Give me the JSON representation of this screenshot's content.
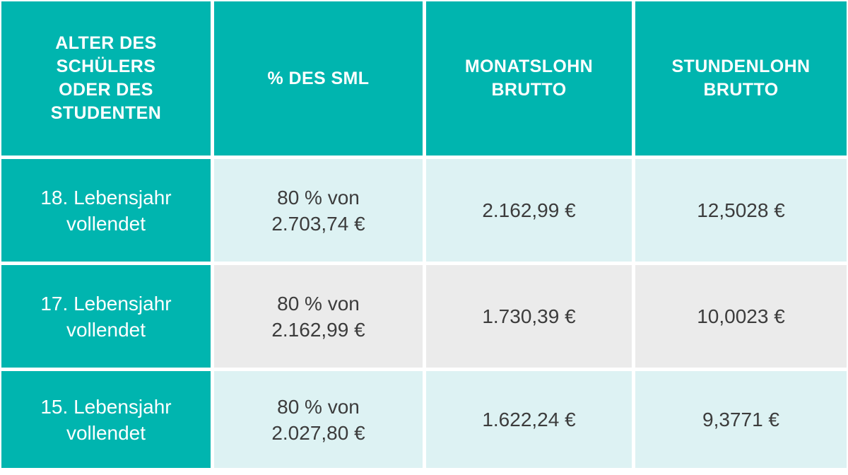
{
  "colors": {
    "teal": "#00b5af",
    "light_cyan": "#ddf2f3",
    "light_gray": "#ebebeb",
    "text_dark": "#3c3c3c",
    "header_text": "#ffffff",
    "gutter": "#ffffff"
  },
  "table": {
    "headers": [
      {
        "text": "ALTER DES\nSCHÜLERS\nODER DES\nSTUDENTEN"
      },
      {
        "text": "% DES SML"
      },
      {
        "text": "MONATSLOHN\nBRUTTO"
      },
      {
        "text": "STUNDENLOHN\nBRUTTO"
      }
    ],
    "rows": [
      {
        "age": "18. Lebensjahr\nvollendet",
        "pct_sml": "80 % von\n2.703,74 €",
        "monatslohn": "2.162,99 €",
        "stundenlohn": "12,5028 €"
      },
      {
        "age": "17. Lebensjahr\nvollendet",
        "pct_sml": "80 % von\n2.162,99 €",
        "monatslohn": "1.730,39 €",
        "stundenlohn": "10,0023 €"
      },
      {
        "age": "15. Lebensjahr\nvollendet",
        "pct_sml": "80 % von\n2.027,80 €",
        "monatslohn": "1.622,24 €",
        "stundenlohn": "9,3771 €"
      }
    ]
  },
  "chart_data": {
    "type": "table",
    "title": "",
    "columns": [
      "ALTER DES SCHÜLERS ODER DES STUDENTEN",
      "% DES SML",
      "MONATSLOHN BRUTTO",
      "STUNDENLOHN BRUTTO"
    ],
    "rows": [
      [
        "18. Lebensjahr vollendet",
        "80 % von 2.703,74 €",
        "2.162,99 €",
        "12,5028 €"
      ],
      [
        "17. Lebensjahr vollendet",
        "80 % von 2.162,99 €",
        "1.730,39 €",
        "10,0023 €"
      ],
      [
        "15. Lebensjahr vollendet",
        "80 % von 2.027,80 €",
        "1.622,24 €",
        "9,3771 €"
      ]
    ]
  }
}
